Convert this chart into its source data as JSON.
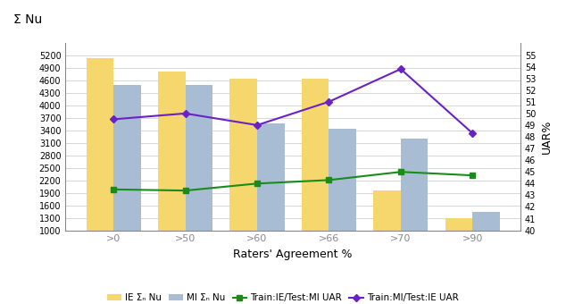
{
  "categories": [
    ">0",
    ">50",
    ">60",
    ">66",
    ">70",
    ">90"
  ],
  "ie_nu": [
    5150,
    4820,
    4650,
    4650,
    1950,
    1300
  ],
  "mi_nu": [
    4500,
    4500,
    3570,
    3450,
    3200,
    1450
  ],
  "train_ie_test_mi_uar": [
    43.5,
    43.4,
    44.0,
    44.3,
    45.0,
    44.7
  ],
  "train_mi_test_ie_uar": [
    49.5,
    50.0,
    49.0,
    51.0,
    53.8,
    48.3
  ],
  "ie_color": "#F5D76E",
  "mi_color": "#A8BDD4",
  "green_color": "#1a8c1a",
  "purple_color": "#6B21C8",
  "left_ylabel": "Σ Nu",
  "right_ylabel": "UAR%",
  "xlabel": "Raters' Agreement %",
  "left_ylim": [
    1000,
    5500
  ],
  "right_ylim": [
    40,
    56
  ],
  "left_yticks": [
    1000,
    1300,
    1600,
    1900,
    2200,
    2500,
    2800,
    3100,
    3400,
    3700,
    4000,
    4300,
    4600,
    4900,
    5200
  ],
  "right_yticks": [
    40,
    41,
    42,
    43,
    44,
    45,
    46,
    47,
    48,
    49,
    50,
    51,
    52,
    53,
    54,
    55
  ],
  "legend_labels": [
    "IE Σₙ Nu",
    "MI Σₙ Nu",
    "Train:IE/Test:MI UAR",
    "Train:MI/Test:IE UAR"
  ],
  "bar_width": 0.38,
  "grid_color": "#d0d0d0",
  "tick_color": "#888888",
  "spine_color": "#888888"
}
